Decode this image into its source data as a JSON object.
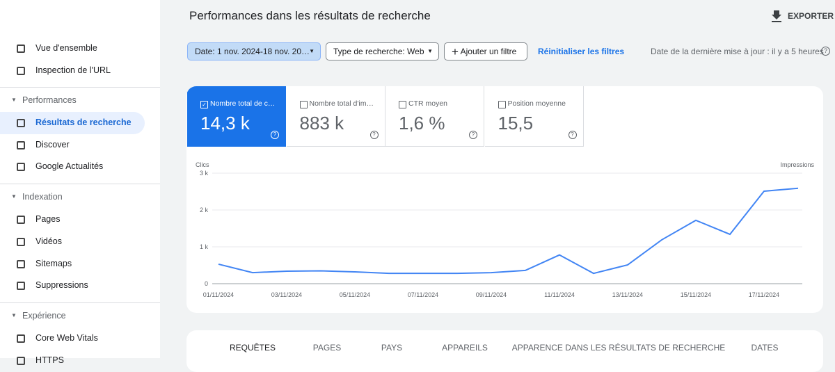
{
  "sidebar": {
    "top": [
      "Vue d'ensemble",
      "Inspection de l'URL"
    ],
    "sections": [
      {
        "title": "Performances",
        "items": [
          "Résultats de recherche",
          "Discover",
          "Google Actualités"
        ]
      },
      {
        "title": "Indexation",
        "items": [
          "Pages",
          "Vidéos",
          "Sitemaps",
          "Suppressions"
        ]
      },
      {
        "title": "Expérience",
        "items": [
          "Core Web Vitals",
          "HTTPS"
        ]
      }
    ]
  },
  "header": {
    "title": "Performances dans les résultats de recherche",
    "export": "EXPORTER"
  },
  "filters": {
    "date": "Date: 1 nov. 2024-18 nov. 20…",
    "type": "Type de recherche: Web",
    "add": "Ajouter un filtre",
    "reset": "Réinitialiser les filtres",
    "updated": "Date de la dernière mise à jour : il y a 5 heures"
  },
  "metrics": [
    {
      "label": "Nombre total de c…",
      "value": "14,3 k"
    },
    {
      "label": "Nombre total d'im…",
      "value": "883 k"
    },
    {
      "label": "CTR moyen",
      "value": "1,6 %"
    },
    {
      "label": "Position moyenne",
      "value": "15,5"
    }
  ],
  "chart_data": {
    "type": "line",
    "y_label": "Clics",
    "y2_label": "Impressions",
    "categories": [
      "01/11/2024",
      null,
      "03/11/2024",
      null,
      "05/11/2024",
      null,
      "07/11/2024",
      null,
      "09/11/2024",
      null,
      "11/11/2024",
      null,
      "13/11/2024",
      null,
      "15/11/2024",
      null,
      "17/11/2024",
      null
    ],
    "series": [
      {
        "name": "Clics",
        "color": "#4285f4",
        "values": [
          530,
          300,
          340,
          350,
          320,
          280,
          280,
          280,
          300,
          360,
          780,
          280,
          510,
          1190,
          1720,
          1340,
          2510,
          2590
        ]
      }
    ],
    "ylim": [
      0,
      3000
    ],
    "yticks": [
      0,
      {
        "value": 1000,
        "label": "1 k"
      },
      {
        "value": 2000,
        "label": "2 k"
      },
      {
        "value": 3000,
        "label": "3 k"
      }
    ],
    "grid": true
  },
  "tabs": [
    "REQUÊTES",
    "PAGES",
    "PAYS",
    "APPAREILS",
    "APPARENCE DANS LES RÉSULTATS DE RECHERCHE",
    "DATES"
  ]
}
